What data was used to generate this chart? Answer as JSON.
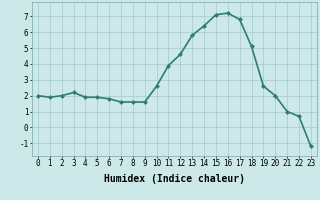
{
  "x": [
    0,
    1,
    2,
    3,
    4,
    5,
    6,
    7,
    8,
    9,
    10,
    11,
    12,
    13,
    14,
    15,
    16,
    17,
    18,
    19,
    20,
    21,
    22,
    23
  ],
  "y": [
    2.0,
    1.9,
    2.0,
    2.2,
    1.9,
    1.9,
    1.8,
    1.6,
    1.6,
    1.6,
    2.6,
    3.9,
    4.6,
    5.8,
    6.4,
    7.1,
    7.2,
    6.8,
    5.1,
    2.6,
    2.0,
    1.0,
    0.7,
    -1.2
  ],
  "line_color": "#2e7d6e",
  "marker": "D",
  "marker_size": 2.0,
  "bg_color": "#cce8e8",
  "grid_color": "#aacece",
  "xlabel": "Humidex (Indice chaleur)",
  "xlim": [
    -0.5,
    23.5
  ],
  "ylim": [
    -1.8,
    7.9
  ],
  "yticks": [
    -1,
    0,
    1,
    2,
    3,
    4,
    5,
    6,
    7
  ],
  "xticks": [
    0,
    1,
    2,
    3,
    4,
    5,
    6,
    7,
    8,
    9,
    10,
    11,
    12,
    13,
    14,
    15,
    16,
    17,
    18,
    19,
    20,
    21,
    22,
    23
  ],
  "tick_fontsize": 5.5,
  "label_fontsize": 7,
  "linewidth": 1.2
}
